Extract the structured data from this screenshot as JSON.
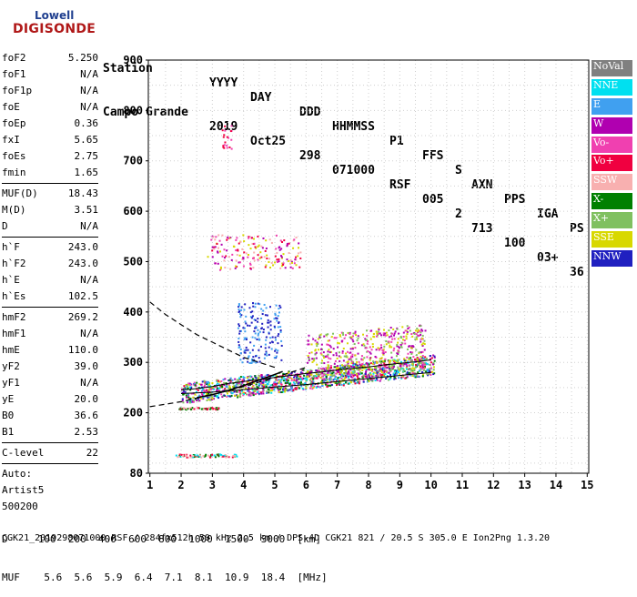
{
  "logo": {
    "line1": "Lowell",
    "line2": "DIGISONDE"
  },
  "header": {
    "labels": [
      "Station",
      "YYYY",
      "DAY",
      "DDD",
      "HHMMSS",
      "P1",
      "FFS",
      "S",
      "AXN",
      "PPS",
      "IGA",
      "PS"
    ],
    "values": [
      "Campo Grande",
      "2019",
      "Oct25",
      "298",
      "071000",
      "RSF",
      "005",
      "2",
      "713",
      "100",
      "03+",
      "36"
    ]
  },
  "params": {
    "group1": [
      {
        "k": "foF2",
        "v": "5.250"
      },
      {
        "k": "foF1",
        "v": "N/A"
      },
      {
        "k": "foF1p",
        "v": "N/A"
      },
      {
        "k": "foE",
        "v": "N/A"
      },
      {
        "k": "foEp",
        "v": "0.36"
      },
      {
        "k": "fxI",
        "v": "5.65"
      },
      {
        "k": "foEs",
        "v": "2.75"
      },
      {
        "k": "fmin",
        "v": "1.65"
      }
    ],
    "group2": [
      {
        "k": "MUF(D)",
        "v": "18.43"
      },
      {
        "k": "M(D)",
        "v": "3.51"
      },
      {
        "k": "D",
        "v": "N/A"
      }
    ],
    "group3": [
      {
        "k": "h`F",
        "v": "243.0"
      },
      {
        "k": "h`F2",
        "v": "243.0"
      },
      {
        "k": "h`E",
        "v": "N/A"
      },
      {
        "k": "h`Es",
        "v": "102.5"
      }
    ],
    "group4": [
      {
        "k": "hmF2",
        "v": "269.2"
      },
      {
        "k": "hmF1",
        "v": "N/A"
      },
      {
        "k": "hmE",
        "v": "110.0"
      },
      {
        "k": "yF2",
        "v": "39.0"
      },
      {
        "k": "yF1",
        "v": "N/A"
      },
      {
        "k": "yE",
        "v": "20.0"
      },
      {
        "k": "B0",
        "v": "36.6"
      },
      {
        "k": "B1",
        "v": "2.53"
      }
    ],
    "clevel": {
      "k": "C-level",
      "v": "22"
    },
    "auto": [
      "Auto:",
      "Artist5",
      "500200"
    ]
  },
  "legend": [
    {
      "label": "NoVal",
      "color": "#808080"
    },
    {
      "label": "NNE",
      "color": "#00e0f0"
    },
    {
      "label": "E",
      "color": "#40a0f0"
    },
    {
      "label": "W",
      "color": "#b000b0"
    },
    {
      "label": "Vo-",
      "color": "#f040b0"
    },
    {
      "label": "Vo+",
      "color": "#f00040"
    },
    {
      "label": "SSW",
      "color": "#f8b0b0"
    },
    {
      "label": "X-",
      "color": "#008000"
    },
    {
      "label": "X+",
      "color": "#80c060"
    },
    {
      "label": "SSE",
      "color": "#d8d800"
    },
    {
      "label": "NNW",
      "color": "#2020c0"
    }
  ],
  "footer": {
    "d_line": "D     100  200  400  600  800  1000  1500  3000  [km]",
    "muf_line": "MUF    5.6  5.6  5.9  6.4  7.1  8.1  10.9  18.4  [MHz]",
    "file_line": "CGK21_2019298071000.RSF / 284fx512h 50 kHz 2.5 km / DPS-4D CGK21 821 / 20.5 S 305.0 E Ion2Png 1.3.20"
  },
  "chart_data": {
    "type": "scatter",
    "x_ticks": [
      1,
      2,
      3,
      4,
      5,
      6,
      7,
      8,
      9,
      10,
      11,
      12,
      13,
      14,
      15
    ],
    "y_ticks": [
      80,
      200,
      300,
      400,
      500,
      600,
      700,
      800,
      900
    ],
    "xlim": [
      0.95,
      15.05
    ],
    "ylim": [
      80,
      900
    ],
    "grid": true,
    "legend_placement": "right",
    "traces": [
      {
        "name": "F-trace upper",
        "x": [
          2.0,
          2.5,
          3.0,
          3.5,
          4.0,
          4.5,
          5.0,
          5.5,
          6.0,
          6.5,
          7.0,
          7.5,
          8.0,
          8.5,
          9.0,
          9.5,
          10.0
        ],
        "y": [
          245,
          248,
          252,
          258,
          262,
          266,
          270,
          274,
          278,
          281,
          285,
          288,
          291,
          295,
          298,
          301,
          305
        ]
      },
      {
        "name": "F-trace lower",
        "x": [
          2.0,
          3.0,
          4.0,
          5.0,
          6.0,
          7.0,
          8.0,
          9.0,
          10.0
        ],
        "y": [
          238,
          241,
          246,
          251,
          256,
          262,
          268,
          274,
          280
        ]
      },
      {
        "name": "Es trace",
        "x": [
          1.9,
          2.2,
          2.5,
          2.8,
          3.0
        ],
        "y": [
          210,
          210,
          211,
          211,
          210
        ]
      },
      {
        "name": "Es multiple",
        "x": [
          1.8,
          2.2,
          2.6,
          3.0,
          3.5
        ],
        "y": [
          115,
          115,
          115,
          116,
          116
        ]
      }
    ],
    "model_curves": [
      {
        "name": "dashed upper",
        "x": [
          1.0,
          1.5,
          2.0,
          2.5,
          3.0,
          3.5,
          4.0,
          4.5,
          5.0
        ],
        "y": [
          420,
          395,
          375,
          355,
          340,
          325,
          310,
          300,
          290
        ]
      },
      {
        "name": "dashed lower",
        "x": [
          1.0,
          2.0,
          3.0,
          4.0,
          5.0,
          6.0
        ],
        "y": [
          212,
          222,
          236,
          252,
          270,
          290
        ]
      },
      {
        "name": "profile solid",
        "x": [
          2.5,
          3.0,
          3.5,
          4.0,
          4.5,
          5.0,
          5.25
        ],
        "y": [
          230,
          236,
          244,
          254,
          265,
          276,
          282
        ]
      }
    ]
  }
}
